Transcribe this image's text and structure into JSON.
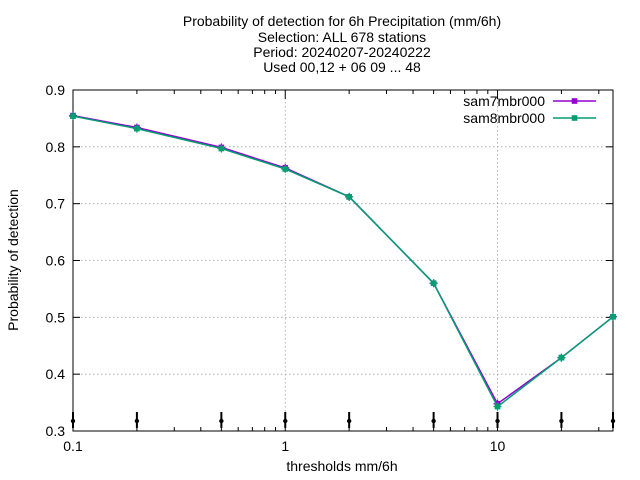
{
  "chart_data": {
    "type": "line",
    "title_lines": [
      "Probability of detection  for 6h Precipitation (mm/6h)",
      "Selection: ALL    678 stations",
      "Period: 20240207-20240222",
      "Used 00,12 + 06 09 ... 48"
    ],
    "xlabel": "thresholds mm/6h",
    "ylabel": "Probability of detection",
    "x_scale": "log",
    "xlim": [
      0.1,
      35
    ],
    "ylim": [
      0.3,
      0.9
    ],
    "x_ticks": [
      {
        "value": 0.1,
        "label": "0.1"
      },
      {
        "value": 1,
        "label": "1"
      },
      {
        "value": 10,
        "label": "10"
      }
    ],
    "y_ticks": [
      {
        "value": 0.3,
        "label": "0.3"
      },
      {
        "value": 0.4,
        "label": "0.4"
      },
      {
        "value": 0.5,
        "label": "0.5"
      },
      {
        "value": 0.6,
        "label": "0.6"
      },
      {
        "value": 0.7,
        "label": "0.7"
      },
      {
        "value": 0.8,
        "label": "0.8"
      },
      {
        "value": 0.9,
        "label": "0.9"
      }
    ],
    "grid": true,
    "legend_position": "top-right",
    "x": [
      0.1,
      0.2,
      0.5,
      1,
      2,
      5,
      10,
      20,
      35
    ],
    "series": [
      {
        "name": "sam7mbr000",
        "color": "#9400d3",
        "values": [
          0.855,
          0.834,
          0.799,
          0.763,
          0.712,
          0.56,
          0.348,
          0.429,
          0.501
        ]
      },
      {
        "name": "sam8mbr000",
        "color": "#009e73",
        "values": [
          0.854,
          0.832,
          0.797,
          0.761,
          0.712,
          0.56,
          0.343,
          0.429,
          0.501
        ]
      }
    ],
    "count_marker_x": [
      0.1,
      0.2,
      0.5,
      1,
      2,
      5,
      10,
      20,
      35
    ]
  }
}
